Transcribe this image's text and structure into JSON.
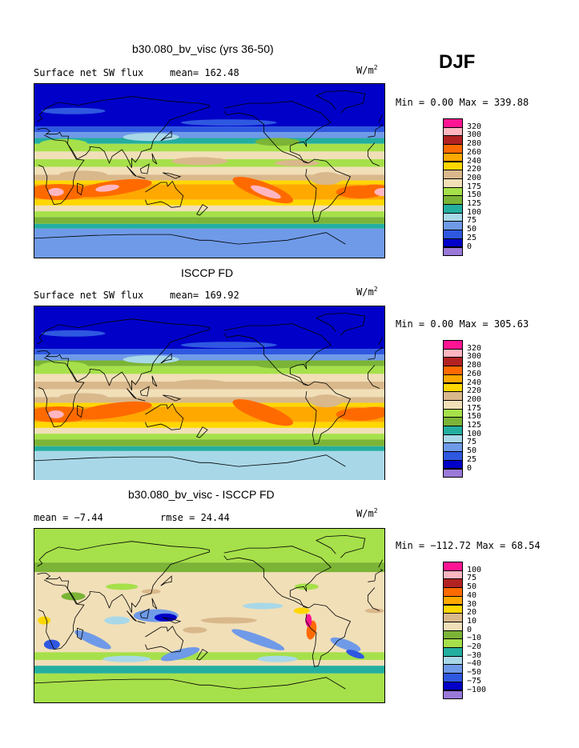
{
  "season_label": "DJF",
  "units": {
    "base": "W/m",
    "sup": "2"
  },
  "palette": {
    "c_neg100": "#9a79d8",
    "c_neg75": "#0000c8",
    "c_neg50": "#2f58e0",
    "c_neg40": "#6f9ae8",
    "c_neg30": "#a8d8e8",
    "c_neg20": "#23aea0",
    "c_neg10": "#a6e04a",
    "c_0": "#7bb436",
    "c_10": "#f1dfb8",
    "c_20": "#d9b88b",
    "c_30": "#ffd700",
    "c_40": "#ffa800",
    "c_50": "#ff6a00",
    "c_75": "#ffb6c1",
    "c_100": "#ff1493",
    "s0": "#9a79d8",
    "s25": "#0000c8",
    "s50": "#2f58e0",
    "s75": "#6f9ae8",
    "s100": "#a8d8e8",
    "s125": "#23aea0",
    "s150": "#7bb436",
    "s175": "#a6e04a",
    "s200": "#f1dfb8",
    "s220": "#d9b88b",
    "s240": "#ffd700",
    "s260": "#ffa800",
    "s280": "#ff6a00",
    "s300": "#b22222",
    "s320": "#ffb6c1",
    "s340": "#ff1493"
  },
  "panels": [
    {
      "id": "model",
      "title": "b30.080_bv_visc (yrs 36-50)",
      "subtitle_left": "Surface net SW flux",
      "stat_text": "mean= 162.48",
      "minmax_text": "Min =    0.00 Max = 339.88"
    },
    {
      "id": "obs",
      "title": "ISCCP FD",
      "subtitle_left": "Surface net SW flux",
      "stat_text": "mean= 169.92",
      "minmax_text": "Min =    0.00 Max = 305.63"
    },
    {
      "id": "diff",
      "title": "b30.080_bv_visc - ISCCP FD",
      "subtitle_left": "mean =  −7.44",
      "stat_text": "rmse =  24.44",
      "minmax_text": "Min = −112.72 Max =  68.54"
    }
  ],
  "chart_data": [
    {
      "type": "heatmap",
      "title": "b30.080_bv_visc (yrs 36-50)",
      "subtitle": "Surface net SW flux",
      "units": "W/m2",
      "stats": {
        "mean": 162.48,
        "min": 0.0,
        "max": 339.88
      },
      "levels": [
        "320",
        "300",
        "280",
        "260",
        "240",
        "220",
        "200",
        "175",
        "150",
        "125",
        "100",
        "75",
        "50",
        "25",
        "0"
      ],
      "level_colors": [
        "#ff1493",
        "#ffb6c1",
        "#b22222",
        "#ff6a00",
        "#ffa800",
        "#ffd700",
        "#d9b88b",
        "#f1dfb8",
        "#a6e04a",
        "#7bb436",
        "#23aea0",
        "#a8d8e8",
        "#6f9ae8",
        "#2f58e0",
        "#0000c8",
        "#9a79d8"
      ]
    },
    {
      "type": "heatmap",
      "title": "ISCCP FD",
      "subtitle": "Surface net SW flux",
      "units": "W/m2",
      "stats": {
        "mean": 169.92,
        "min": 0.0,
        "max": 305.63
      },
      "levels": [
        "320",
        "300",
        "280",
        "260",
        "240",
        "220",
        "200",
        "175",
        "150",
        "125",
        "100",
        "75",
        "50",
        "25",
        "0"
      ],
      "level_colors": [
        "#ff1493",
        "#ffb6c1",
        "#b22222",
        "#ff6a00",
        "#ffa800",
        "#ffd700",
        "#d9b88b",
        "#f1dfb8",
        "#a6e04a",
        "#7bb436",
        "#23aea0",
        "#a8d8e8",
        "#6f9ae8",
        "#2f58e0",
        "#0000c8",
        "#9a79d8"
      ]
    },
    {
      "type": "heatmap",
      "title": "b30.080_bv_visc - ISCCP FD",
      "units": "W/m2",
      "stats": {
        "mean": -7.44,
        "rmse": 24.44,
        "min": -112.72,
        "max": 68.54
      },
      "levels": [
        "100",
        "75",
        "50",
        "40",
        "30",
        "20",
        "10",
        "0",
        "−10",
        "−20",
        "−30",
        "−40",
        "−50",
        "−75",
        "−100"
      ],
      "level_colors": [
        "#ff1493",
        "#ffb6c1",
        "#b22222",
        "#ff6a00",
        "#ffa800",
        "#ffd700",
        "#d9b88b",
        "#f1dfb8",
        "#7bb436",
        "#a6e04a",
        "#23aea0",
        "#a8d8e8",
        "#6f9ae8",
        "#2f58e0",
        "#0000c8",
        "#9a79d8"
      ]
    }
  ]
}
